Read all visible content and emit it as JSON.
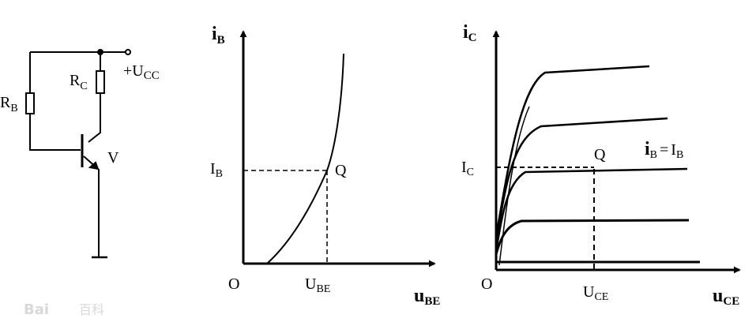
{
  "circuit": {
    "rb_main": "R",
    "rb_sub": "B",
    "rc_main": "R",
    "rc_sub": "C",
    "ucc_main": "+U",
    "ucc_sub": "CC",
    "transistor": "V"
  },
  "input_plot": {
    "y_main": "i",
    "y_sub": "B",
    "x_main": "u",
    "x_sub": "BE",
    "origin": "O",
    "ib_main": "I",
    "ib_sub": "B",
    "ube_main": "U",
    "ube_sub": "BE",
    "q": "Q"
  },
  "output_plot": {
    "y_main": "i",
    "y_sub": "C",
    "x_main": "u",
    "x_sub": "CE",
    "origin": "O",
    "ic_main": "I",
    "ic_sub": "C",
    "uce_main": "U",
    "uce_sub": "CE",
    "q": "Q",
    "param_i": "i",
    "param_i_sub": "B",
    "param_eq": "=",
    "param_I": "I",
    "param_I_sub": "B"
  },
  "watermark": {
    "logo": "Bai",
    "cn": "百科"
  }
}
